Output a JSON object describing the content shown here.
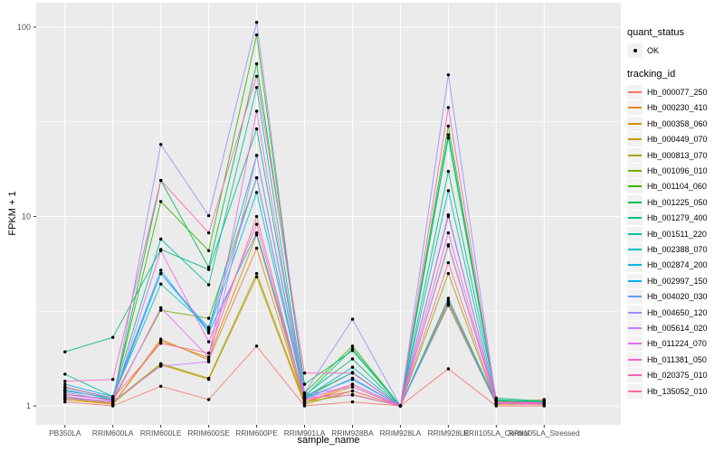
{
  "chart_data": {
    "type": "line",
    "title": "",
    "xlabel": "sample_name",
    "ylabel": "FPKM + 1",
    "y_scale": "log10",
    "ylim": [
      0.95,
      130
    ],
    "y_major_ticks": [
      1,
      10,
      100
    ],
    "y_tick_labels": [
      "1",
      "10",
      "100"
    ],
    "y_minor_ticks": [
      3.1623,
      31.623
    ],
    "grid": "on",
    "legend_position": "right",
    "point_shape": "filled-dot",
    "categories": [
      "PB350LA",
      "RRIM600LA",
      "RRIM600LE",
      "RRIM600SE",
      "RRIM600PE",
      "RRIM901LA",
      "RRIM928BA",
      "RRIM928LA",
      "RRIM928LE",
      "RRII105LA_Control",
      "RRII105LA_Stressed"
    ],
    "series": [
      {
        "name": "Hb_000077_250",
        "color": "#F8766D",
        "values": [
          1.05,
          1.0,
          1.27,
          1.08,
          2.07,
          1.0,
          1.05,
          1.0,
          1.57,
          1.0,
          1.0
        ]
      },
      {
        "name": "Hb_000230_410",
        "color": "#E8842C",
        "values": [
          1.1,
          1.02,
          2.25,
          1.75,
          6.8,
          1.04,
          1.3,
          1.0,
          3.5,
          1.04,
          1.08
        ]
      },
      {
        "name": "Hb_000358_060",
        "color": "#D89000",
        "values": [
          1.08,
          1.02,
          2.2,
          1.8,
          8.0,
          1.04,
          1.26,
          1.0,
          3.6,
          1.03,
          1.05
        ]
      },
      {
        "name": "Hb_000449_070",
        "color": "#C49A00",
        "values": [
          1.12,
          1.03,
          1.65,
          1.38,
          4.8,
          1.02,
          1.2,
          1.0,
          3.4,
          1.02,
          1.03
        ]
      },
      {
        "name": "Hb_000813_070",
        "color": "#A3A500",
        "values": [
          1.1,
          1.05,
          1.67,
          1.4,
          5.0,
          1.05,
          1.15,
          1.0,
          5.0,
          1.02,
          1.02
        ]
      },
      {
        "name": "Hb_001096_010",
        "color": "#7CAE00",
        "values": [
          1.15,
          1.08,
          3.2,
          2.9,
          16.0,
          1.1,
          1.5,
          1.0,
          7.1,
          1.05,
          1.04
        ]
      },
      {
        "name": "Hb_001104_060",
        "color": "#39B600",
        "values": [
          1.2,
          1.1,
          12.0,
          6.6,
          91.0,
          1.17,
          2.07,
          1.0,
          30.0,
          1.06,
          1.04
        ]
      },
      {
        "name": "Hb_001225_050",
        "color": "#00BC51",
        "values": [
          1.15,
          1.08,
          15.5,
          5.4,
          64.0,
          1.3,
          1.96,
          1.0,
          27.0,
          1.08,
          1.05
        ]
      },
      {
        "name": "Hb_001279_400",
        "color": "#00BF7D",
        "values": [
          1.93,
          2.3,
          6.7,
          5.25,
          29.0,
          1.14,
          1.77,
          1.0,
          17.3,
          1.1,
          1.06
        ]
      },
      {
        "name": "Hb_001511_220",
        "color": "#00C1A7",
        "values": [
          1.47,
          1.12,
          7.6,
          4.36,
          48.0,
          1.12,
          2.0,
          1.0,
          26.0,
          1.07,
          1.05
        ]
      },
      {
        "name": "Hb_002388_070",
        "color": "#00BFC4",
        "values": [
          1.2,
          1.1,
          4.4,
          2.6,
          21.0,
          1.1,
          1.6,
          1.0,
          13.7,
          1.05,
          1.04
        ]
      },
      {
        "name": "Hb_002874_200",
        "color": "#00B8E5",
        "values": [
          1.25,
          1.1,
          5.0,
          2.5,
          13.4,
          1.12,
          1.5,
          1.0,
          10.2,
          1.04,
          1.03
        ]
      },
      {
        "name": "Hb_002997_150",
        "color": "#00B0F6",
        "values": [
          1.3,
          1.12,
          5.2,
          2.43,
          8.2,
          1.1,
          1.38,
          1.0,
          3.7,
          1.04,
          1.03
        ]
      },
      {
        "name": "Hb_004020_030",
        "color": "#619CFF",
        "values": [
          1.22,
          1.08,
          5.0,
          2.57,
          16.0,
          1.08,
          1.4,
          1.0,
          3.4,
          1.03,
          1.02
        ]
      },
      {
        "name": "Hb_004650_120",
        "color": "#9590FF",
        "values": [
          1.1,
          1.05,
          24.0,
          10.1,
          106.0,
          1.17,
          2.87,
          1.0,
          56.0,
          1.05,
          1.03
        ]
      },
      {
        "name": "Hb_005614_020",
        "color": "#C77CFF",
        "values": [
          1.18,
          1.06,
          1.62,
          1.71,
          21.0,
          1.15,
          1.26,
          1.0,
          7.0,
          1.04,
          1.03
        ]
      },
      {
        "name": "Hb_011224_070",
        "color": "#E76BF3",
        "values": [
          1.12,
          1.05,
          3.3,
          1.81,
          36.0,
          1.1,
          1.14,
          1.0,
          8.2,
          1.03,
          1.02
        ]
      },
      {
        "name": "Hb_011381_050",
        "color": "#FA62DB",
        "values": [
          1.15,
          1.07,
          6.6,
          2.18,
          9.1,
          1.08,
          1.3,
          1.0,
          10.0,
          1.04,
          1.03
        ]
      },
      {
        "name": "Hb_020375_010",
        "color": "#FF62BC",
        "values": [
          1.35,
          1.38,
          15.5,
          8.2,
          55.0,
          1.49,
          1.49,
          1.0,
          37.6,
          1.05,
          1.04
        ]
      },
      {
        "name": "Hb_135052_010",
        "color": "#FF6B94",
        "values": [
          1.26,
          1.1,
          2.14,
          1.9,
          10.0,
          1.07,
          1.2,
          1.0,
          5.7,
          1.03,
          1.02
        ]
      }
    ],
    "legend": {
      "quant_status": {
        "title": "quant_status",
        "items": [
          {
            "label": "OK",
            "shape": "black-dot"
          }
        ]
      },
      "tracking_id": {
        "title": "tracking_id"
      }
    },
    "colors": {
      "panel_bg": "#EBEBEB",
      "grid": "#FFFFFF",
      "point": "#000000",
      "tick_text": "#4D4D4D",
      "axis_title_text": "#000000",
      "legend_key_bg": "#F2F2F2",
      "tick_mark": "#333333"
    }
  }
}
